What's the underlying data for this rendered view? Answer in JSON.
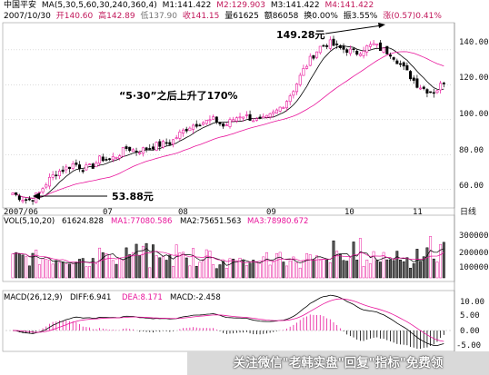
{
  "header": {
    "ma_row": {
      "security": "中国平安",
      "ma_params": "MA(5,30,5,60,30,240,360,4)",
      "m1": "M1:141.422",
      "m2": "M2:129.903",
      "m3": "M3:141.422",
      "m4": "M4:141.422"
    },
    "quote_row": {
      "date": "2007/10/30",
      "open": "开140.60",
      "high": "高142.89",
      "low": "低137.90",
      "close": "收141.15",
      "volume": "量61625",
      "amount": "额86058",
      "turnover": "换0.00%",
      "amplitude": "振3.55%",
      "change": "涨(0.57)0.41%"
    }
  },
  "annotations": {
    "peak_price": "149.28元",
    "trough_price": "53.88元",
    "rise_note": "“5·30”之后上升了170%"
  },
  "x_labels": [
    "2007/06",
    "07",
    "08",
    "09",
    "10",
    "11"
  ],
  "price_axis": {
    "ticks": [
      "140.00",
      "120.00",
      "100.00",
      "80.00",
      "60.00"
    ],
    "unit": "日线"
  },
  "vol_panel": {
    "title": "VOL(5,10,20)",
    "value": "61624.828",
    "ma1": "MA1:77080.586",
    "ma2": "MA2:75651.563",
    "ma3": "MA3:78980.672",
    "ticks": [
      "300000",
      "200000",
      "100000"
    ]
  },
  "macd_panel": {
    "title": "MACD(26,12,9)",
    "diff": "DIFF:6.941",
    "dea": "DEA:8.171",
    "macd": "MACD:-2.458",
    "ticks": [
      "10.00",
      "5.00",
      "0.00",
      "-5.00"
    ]
  },
  "watermark": "关注微信\"老韩实盘\"回复\"指标\"免费领",
  "colors": {
    "up": "#e8149b",
    "down": "#000000",
    "ma_fast": "#000000",
    "ma_slow": "#e8149b",
    "bg": "#ffffff"
  },
  "chart_data": {
    "type": "candlestick",
    "title": "",
    "y_range": [
      50,
      155
    ],
    "y_ticks": [
      60,
      80,
      100,
      120,
      140
    ],
    "price_path": [
      {
        "x": "2007/06",
        "y": 58
      },
      {
        "x": "",
        "y": 55
      },
      {
        "x": "",
        "y": 54
      },
      {
        "x": "",
        "y": 58
      },
      {
        "x": "",
        "y": 65
      },
      {
        "x": "",
        "y": 70
      },
      {
        "x": "07",
        "y": 72
      },
      {
        "x": "",
        "y": 75
      },
      {
        "x": "",
        "y": 72
      },
      {
        "x": "",
        "y": 73
      },
      {
        "x": "",
        "y": 78
      },
      {
        "x": "",
        "y": 77
      },
      {
        "x": "",
        "y": 80
      },
      {
        "x": "",
        "y": 84
      },
      {
        "x": "08",
        "y": 82
      },
      {
        "x": "",
        "y": 83
      },
      {
        "x": "",
        "y": 85
      },
      {
        "x": "",
        "y": 86
      },
      {
        "x": "",
        "y": 87
      },
      {
        "x": "",
        "y": 92
      },
      {
        "x": "",
        "y": 96
      },
      {
        "x": "",
        "y": 98
      },
      {
        "x": "",
        "y": 99
      },
      {
        "x": "",
        "y": 100
      },
      {
        "x": "",
        "y": 96
      },
      {
        "x": "09",
        "y": 100
      },
      {
        "x": "",
        "y": 103
      },
      {
        "x": "",
        "y": 101
      },
      {
        "x": "",
        "y": 99
      },
      {
        "x": "",
        "y": 101
      },
      {
        "x": "",
        "y": 105
      },
      {
        "x": "",
        "y": 110
      },
      {
        "x": "",
        "y": 118
      },
      {
        "x": "",
        "y": 128
      },
      {
        "x": "",
        "y": 136
      },
      {
        "x": "10",
        "y": 142
      },
      {
        "x": "",
        "y": 144
      },
      {
        "x": "",
        "y": 141
      },
      {
        "x": "",
        "y": 140
      },
      {
        "x": "",
        "y": 138
      },
      {
        "x": "",
        "y": 141
      },
      {
        "x": "",
        "y": 143
      },
      {
        "x": "",
        "y": 140
      },
      {
        "x": "",
        "y": 138
      },
      {
        "x": "",
        "y": 132
      },
      {
        "x": "11",
        "y": 126
      },
      {
        "x": "",
        "y": 120
      },
      {
        "x": "",
        "y": 117
      },
      {
        "x": "",
        "y": 116
      },
      {
        "x": "",
        "y": 122
      }
    ],
    "high_point": 149.28,
    "low_point": 53.88
  }
}
